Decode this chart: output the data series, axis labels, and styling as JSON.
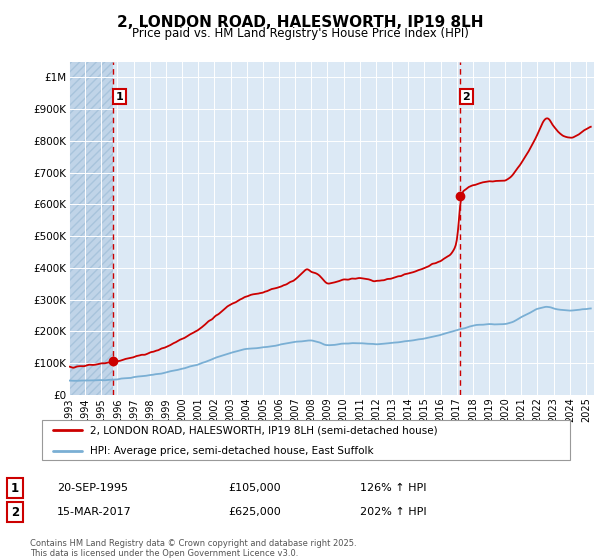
{
  "title": "2, LONDON ROAD, HALESWORTH, IP19 8LH",
  "subtitle": "Price paid vs. HM Land Registry's House Price Index (HPI)",
  "ylim": [
    0,
    1050000
  ],
  "xlim_start": 1993.0,
  "xlim_end": 2025.5,
  "background_color": "#ffffff",
  "plot_bg_color": "#dce9f5",
  "grid_color": "#ffffff",
  "hatch_color": "#c0d4e8",
  "sale1_x": 1995.72,
  "sale1_y": 105000,
  "sale2_x": 2017.2,
  "sale2_y": 625000,
  "vline1_x": 1995.72,
  "vline2_x": 2017.2,
  "red_line_color": "#cc0000",
  "blue_line_color": "#7aafd4",
  "legend_line1": "2, LONDON ROAD, HALESWORTH, IP19 8LH (semi-detached house)",
  "legend_line2": "HPI: Average price, semi-detached house, East Suffolk",
  "annotation1_date": "20-SEP-1995",
  "annotation1_price": "£105,000",
  "annotation1_hpi": "126% ↑ HPI",
  "annotation2_date": "15-MAR-2017",
  "annotation2_price": "£625,000",
  "annotation2_hpi": "202% ↑ HPI",
  "footer_text": "Contains HM Land Registry data © Crown copyright and database right 2025.\nThis data is licensed under the Open Government Licence v3.0.",
  "yticks": [
    0,
    100000,
    200000,
    300000,
    400000,
    500000,
    600000,
    700000,
    800000,
    900000,
    1000000
  ],
  "ytick_labels": [
    "£0",
    "£100K",
    "£200K",
    "£300K",
    "£400K",
    "£500K",
    "£600K",
    "£700K",
    "£800K",
    "£900K",
    "£1M"
  ],
  "xticks": [
    1993,
    1994,
    1995,
    1996,
    1997,
    1998,
    1999,
    2000,
    2001,
    2002,
    2003,
    2004,
    2005,
    2006,
    2007,
    2008,
    2009,
    2010,
    2011,
    2012,
    2013,
    2014,
    2015,
    2016,
    2017,
    2018,
    2019,
    2020,
    2021,
    2022,
    2023,
    2024,
    2025
  ]
}
